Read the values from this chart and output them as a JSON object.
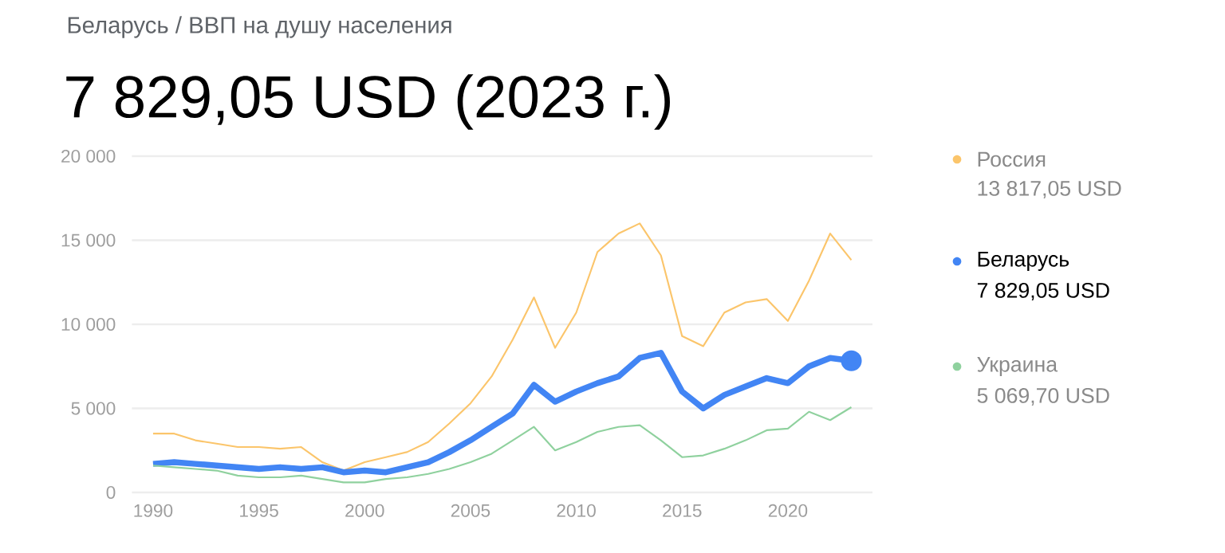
{
  "chart_data": {
    "type": "line",
    "subtitle": "Беларусь / ВВП на душу населения",
    "title": "7 829,05 USD (2023 г.)",
    "x": [
      1990,
      1991,
      1992,
      1993,
      1994,
      1995,
      1996,
      1997,
      1998,
      1999,
      2000,
      2001,
      2002,
      2003,
      2004,
      2005,
      2006,
      2007,
      2008,
      2009,
      2010,
      2011,
      2012,
      2013,
      2014,
      2015,
      2016,
      2017,
      2018,
      2019,
      2020,
      2021,
      2022,
      2023
    ],
    "series": [
      {
        "name": "Россия",
        "color": "#fbc56b",
        "values": [
          3500,
          3500,
          3100,
          2900,
          2700,
          2700,
          2600,
          2700,
          1800,
          1300,
          1800,
          2100,
          2400,
          3000,
          4100,
          5300,
          6900,
          9100,
          11600,
          8600,
          10700,
          14300,
          15400,
          16000,
          14100,
          9300,
          8700,
          10700,
          11300,
          11500,
          10200,
          12600,
          15400,
          13817.05
        ]
      },
      {
        "name": "Беларусь",
        "color": "#4285f4",
        "values": [
          1700,
          1800,
          1700,
          1600,
          1500,
          1400,
          1500,
          1400,
          1500,
          1200,
          1300,
          1200,
          1500,
          1800,
          2400,
          3100,
          3900,
          4700,
          6400,
          5400,
          6000,
          6500,
          6900,
          8000,
          8300,
          6000,
          5000,
          5800,
          6300,
          6800,
          6500,
          7500,
          8000,
          7829.05
        ]
      },
      {
        "name": "Украина",
        "color": "#8fd19e",
        "values": [
          1600,
          1500,
          1400,
          1300,
          1000,
          900,
          900,
          1000,
          800,
          600,
          600,
          800,
          900,
          1100,
          1400,
          1800,
          2300,
          3100,
          3900,
          2500,
          3000,
          3600,
          3900,
          4000,
          3100,
          2100,
          2200,
          2600,
          3100,
          3700,
          3800,
          4800,
          4300,
          5069.7
        ]
      }
    ],
    "annotations": [
      "13 817,05 USD",
      "7 829,05 USD",
      "5 069,70 USD"
    ],
    "xlim": [
      1989,
      2024
    ],
    "ylim": [
      0,
      20000
    ],
    "xticks": [
      1990,
      1995,
      2000,
      2005,
      2010,
      2015,
      2020
    ],
    "yticks": [
      {
        "value": 0,
        "label": "0"
      },
      {
        "value": 5000,
        "label": "5 000"
      },
      {
        "value": 10000,
        "label": "10 000"
      },
      {
        "value": 15000,
        "label": "15 000"
      },
      {
        "value": 20000,
        "label": "20 000"
      }
    ],
    "grid": "y",
    "legend": "right"
  }
}
